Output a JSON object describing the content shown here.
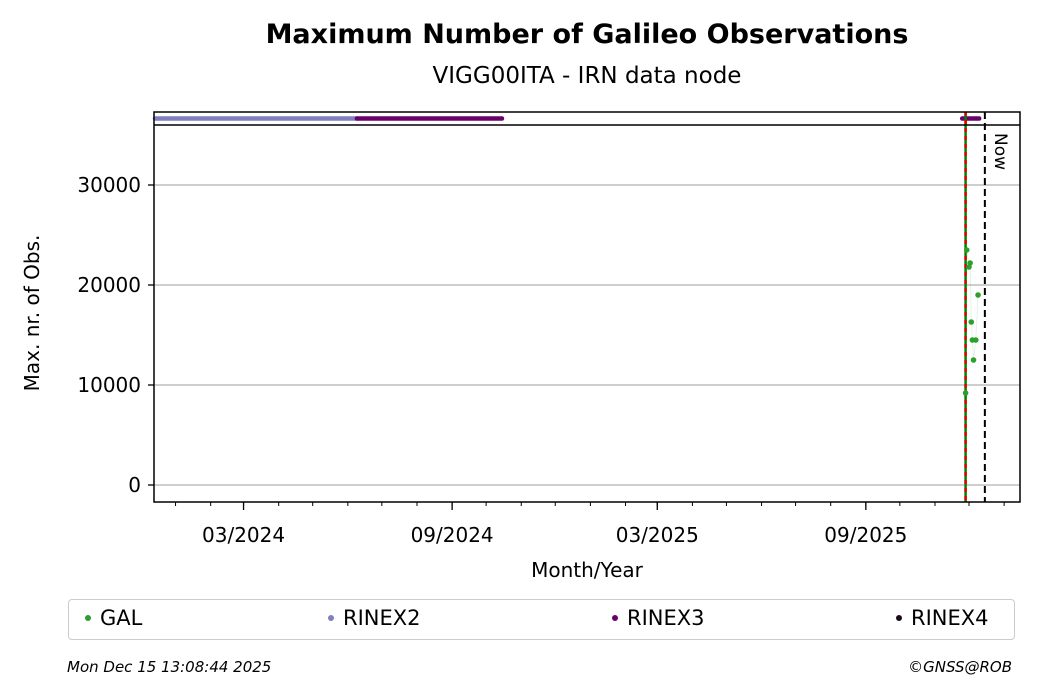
{
  "chart_data": {
    "type": "scatter",
    "title": "Maximum Number of Galileo Observations",
    "subtitle": "VIGG00ITA - IRN data node",
    "xlabel": "Month/Year",
    "ylabel": "Max. nr. of Obs.",
    "xlim": [
      "2023-12-13",
      "2026-01-15"
    ],
    "ylim": [
      -1700,
      36000
    ],
    "yticks": [
      0,
      10000,
      20000,
      30000
    ],
    "xticks": [
      {
        "date": "2024-03-01",
        "label": "03/2024"
      },
      {
        "date": "2024-09-01",
        "label": "09/2024"
      },
      {
        "date": "2025-03-01",
        "label": "03/2025"
      },
      {
        "date": "2025-09-01",
        "label": "09/2025"
      }
    ],
    "grid": "horizontal",
    "now": {
      "date": "2025-12-15",
      "label": "Now"
    },
    "marker_line": {
      "date": "2025-11-28",
      "colors": [
        "#008000",
        "#e00000"
      ]
    },
    "series": [
      {
        "name": "GAL",
        "color": "#2ca02c",
        "points": [
          {
            "x": "2025-11-28",
            "y": 9200
          },
          {
            "x": "2025-11-29",
            "y": 23500
          },
          {
            "x": "2025-12-01",
            "y": 21800
          },
          {
            "x": "2025-12-02",
            "y": 22200
          },
          {
            "x": "2025-12-03",
            "y": 16300
          },
          {
            "x": "2025-12-04",
            "y": 14500
          },
          {
            "x": "2025-12-05",
            "y": 12500
          },
          {
            "x": "2025-12-07",
            "y": 14500
          },
          {
            "x": "2025-12-09",
            "y": 19000
          }
        ]
      },
      {
        "name": "RINEX2",
        "color": "#7f7fbf",
        "ranges": [
          [
            "2023-12-13",
            "2024-06-09"
          ]
        ]
      },
      {
        "name": "RINEX3",
        "color": "#6a006a",
        "ranges": [
          [
            "2024-06-09",
            "2024-10-15"
          ],
          [
            "2025-11-25",
            "2025-12-10"
          ]
        ]
      },
      {
        "name": "RINEX4",
        "color": "#1a0a1a",
        "ranges": []
      }
    ]
  },
  "footer": {
    "timestamp": "Mon Dec 15 13:08:44 2025",
    "copyright": "©GNSS@ROB"
  }
}
